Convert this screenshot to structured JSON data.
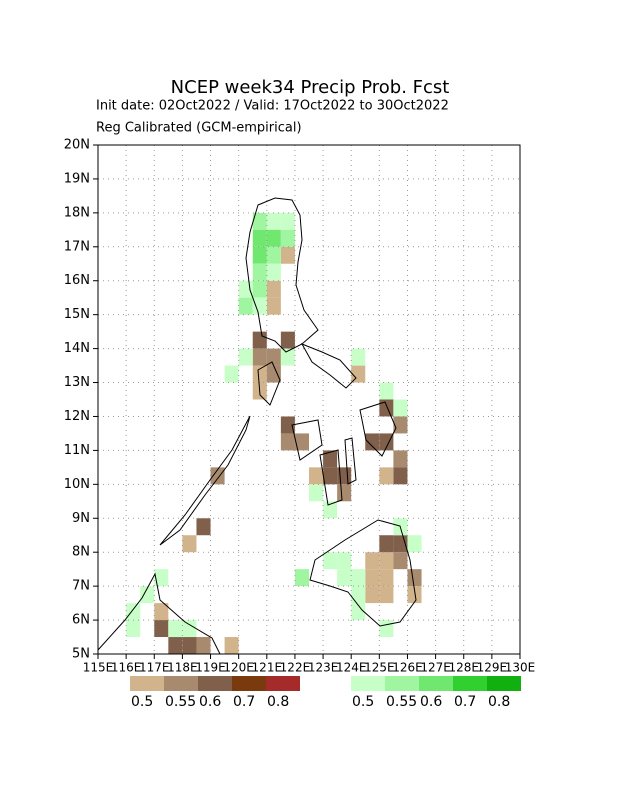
{
  "chart_data": {
    "type": "map",
    "title": "NCEP week34 Precip Prob. Fcst",
    "subtitle": "Init date: 02Oct2022 / Valid: 17Oct2022 to 30Oct2022",
    "note": "Reg Calibrated (GCM-empirical)",
    "xlim": [
      115,
      130
    ],
    "ylim": [
      5,
      20
    ],
    "xticks": [
      {
        "value": 115,
        "label": "115E"
      },
      {
        "value": 116,
        "label": "116E"
      },
      {
        "value": 117,
        "label": "117E"
      },
      {
        "value": 118,
        "label": "118E"
      },
      {
        "value": 119,
        "label": "119E"
      },
      {
        "value": 120,
        "label": "120E"
      },
      {
        "value": 121,
        "label": "121E"
      },
      {
        "value": 122,
        "label": "122E"
      },
      {
        "value": 123,
        "label": "123E"
      },
      {
        "value": 124,
        "label": "124E"
      },
      {
        "value": 125,
        "label": "125E"
      },
      {
        "value": 126,
        "label": "126E"
      },
      {
        "value": 127,
        "label": "127E"
      },
      {
        "value": 128,
        "label": "128E"
      },
      {
        "value": 129,
        "label": "129E"
      },
      {
        "value": 130,
        "label": "130E"
      }
    ],
    "yticks": [
      {
        "value": 5,
        "label": "5N"
      },
      {
        "value": 6,
        "label": "6N"
      },
      {
        "value": 7,
        "label": "7N"
      },
      {
        "value": 8,
        "label": "8N"
      },
      {
        "value": 9,
        "label": "9N"
      },
      {
        "value": 10,
        "label": "10N"
      },
      {
        "value": 11,
        "label": "11N"
      },
      {
        "value": 12,
        "label": "12N"
      },
      {
        "value": 13,
        "label": "13N"
      },
      {
        "value": 14,
        "label": "14N"
      },
      {
        "value": 15,
        "label": "15N"
      },
      {
        "value": 16,
        "label": "16N"
      },
      {
        "value": 17,
        "label": "17N"
      },
      {
        "value": 18,
        "label": "18N"
      },
      {
        "value": 19,
        "label": "19N"
      },
      {
        "value": 20,
        "label": "20N"
      }
    ],
    "grid": true,
    "legends": [
      {
        "colors": [
          "#d2b48c",
          "#a88a6e",
          "#80604a",
          "#7a3a0e",
          "#a52a2a"
        ],
        "labels": [
          0.5,
          0.55,
          0.6,
          0.7,
          0.8
        ]
      },
      {
        "colors": [
          "#c8ffc8",
          "#a0f5a0",
          "#70e870",
          "#30d030",
          "#10b010"
        ],
        "labels": [
          0.5,
          0.55,
          0.6,
          0.7,
          0.8
        ]
      }
    ],
    "layers": [
      {
        "cells": [
          {
            "lon": 121.5,
            "lat": 16.5,
            "p": 0.52
          },
          {
            "lon": 121,
            "lat": 15.5,
            "p": 0.52
          },
          {
            "lon": 121,
            "lat": 15,
            "p": 0.52
          },
          {
            "lon": 120.5,
            "lat": 14,
            "p": 0.62
          },
          {
            "lon": 121.5,
            "lat": 14,
            "p": 0.62
          },
          {
            "lon": 120.5,
            "lat": 13.5,
            "p": 0.57
          },
          {
            "lon": 121,
            "lat": 13.5,
            "p": 0.57
          },
          {
            "lon": 120.5,
            "lat": 13,
            "p": 0.52
          },
          {
            "lon": 121,
            "lat": 13,
            "p": 0.57
          },
          {
            "lon": 120.5,
            "lat": 12.5,
            "p": 0.52
          },
          {
            "lon": 124,
            "lat": 13,
            "p": 0.52
          },
          {
            "lon": 121.5,
            "lat": 11.5,
            "p": 0.62
          },
          {
            "lon": 121.5,
            "lat": 11,
            "p": 0.57
          },
          {
            "lon": 122,
            "lat": 11,
            "p": 0.57
          },
          {
            "lon": 123,
            "lat": 10.5,
            "p": 0.62
          },
          {
            "lon": 123,
            "lat": 10,
            "p": 0.62
          },
          {
            "lon": 123.5,
            "lat": 10,
            "p": 0.62
          },
          {
            "lon": 122.5,
            "lat": 10,
            "p": 0.52
          },
          {
            "lon": 123.5,
            "lat": 9.5,
            "p": 0.57
          },
          {
            "lon": 125,
            "lat": 12,
            "p": 0.62
          },
          {
            "lon": 125.5,
            "lat": 11.5,
            "p": 0.57
          },
          {
            "lon": 124.5,
            "lat": 11,
            "p": 0.62
          },
          {
            "lon": 125,
            "lat": 11,
            "p": 0.62
          },
          {
            "lon": 125.5,
            "lat": 10.5,
            "p": 0.57
          },
          {
            "lon": 125.5,
            "lat": 10,
            "p": 0.62
          },
          {
            "lon": 125,
            "lat": 10,
            "p": 0.52
          },
          {
            "lon": 118.5,
            "lat": 8.5,
            "p": 0.62
          },
          {
            "lon": 118,
            "lat": 8,
            "p": 0.52
          },
          {
            "lon": 119,
            "lat": 10,
            "p": 0.57
          },
          {
            "lon": 124.5,
            "lat": 7.5,
            "p": 0.52
          },
          {
            "lon": 125,
            "lat": 7.5,
            "p": 0.52
          },
          {
            "lon": 124.5,
            "lat": 7,
            "p": 0.52
          },
          {
            "lon": 125,
            "lat": 7,
            "p": 0.52
          },
          {
            "lon": 124.5,
            "lat": 6.5,
            "p": 0.52
          },
          {
            "lon": 125,
            "lat": 6.5,
            "p": 0.52
          },
          {
            "lon": 125,
            "lat": 8,
            "p": 0.62
          },
          {
            "lon": 125.5,
            "lat": 8,
            "p": 0.62
          },
          {
            "lon": 125.5,
            "lat": 7.5,
            "p": 0.57
          },
          {
            "lon": 126,
            "lat": 7,
            "p": 0.57
          },
          {
            "lon": 126,
            "lat": 6.5,
            "p": 0.52
          },
          {
            "lon": 117,
            "lat": 6,
            "p": 0.52
          },
          {
            "lon": 117,
            "lat": 5.5,
            "p": 0.62
          },
          {
            "lon": 117.5,
            "lat": 5,
            "p": 0.62
          },
          {
            "lon": 118,
            "lat": 5,
            "p": 0.62
          },
          {
            "lon": 118.5,
            "lat": 5,
            "p": 0.57
          },
          {
            "lon": 119.5,
            "lat": 5,
            "p": 0.52
          }
        ]
      },
      {
        "cells": [
          {
            "lon": 120.5,
            "lat": 17.5,
            "p": 0.57
          },
          {
            "lon": 121,
            "lat": 17.5,
            "p": 0.52
          },
          {
            "lon": 121.5,
            "lat": 17.5,
            "p": 0.52
          },
          {
            "lon": 120.5,
            "lat": 17,
            "p": 0.62
          },
          {
            "lon": 121,
            "lat": 17,
            "p": 0.62
          },
          {
            "lon": 121.5,
            "lat": 17,
            "p": 0.57
          },
          {
            "lon": 120.5,
            "lat": 16.5,
            "p": 0.62
          },
          {
            "lon": 121,
            "lat": 16.5,
            "p": 0.57
          },
          {
            "lon": 120.5,
            "lat": 16,
            "p": 0.57
          },
          {
            "lon": 121,
            "lat": 16,
            "p": 0.52
          },
          {
            "lon": 120,
            "lat": 15.5,
            "p": 0.52
          },
          {
            "lon": 120.5,
            "lat": 15.5,
            "p": 0.57
          },
          {
            "lon": 120,
            "lat": 15,
            "p": 0.57
          },
          {
            "lon": 120.5,
            "lat": 15,
            "p": 0.52
          },
          {
            "lon": 121.5,
            "lat": 13.5,
            "p": 0.52
          },
          {
            "lon": 120,
            "lat": 13.5,
            "p": 0.52
          },
          {
            "lon": 119.5,
            "lat": 13,
            "p": 0.52
          },
          {
            "lon": 124,
            "lat": 13.5,
            "p": 0.52
          },
          {
            "lon": 125,
            "lat": 12.5,
            "p": 0.52
          },
          {
            "lon": 125.5,
            "lat": 12,
            "p": 0.52
          },
          {
            "lon": 122.5,
            "lat": 9.5,
            "p": 0.52
          },
          {
            "lon": 123,
            "lat": 9,
            "p": 0.52
          },
          {
            "lon": 126,
            "lat": 8,
            "p": 0.52
          },
          {
            "lon": 125.5,
            "lat": 8.5,
            "p": 0.52
          },
          {
            "lon": 123.5,
            "lat": 7.5,
            "p": 0.52
          },
          {
            "lon": 123,
            "lat": 7.5,
            "p": 0.52
          },
          {
            "lon": 124,
            "lat": 7,
            "p": 0.52
          },
          {
            "lon": 123.5,
            "lat": 7,
            "p": 0.52
          },
          {
            "lon": 122,
            "lat": 7,
            "p": 0.57
          },
          {
            "lon": 124,
            "lat": 6,
            "p": 0.52
          },
          {
            "lon": 124,
            "lat": 6.5,
            "p": 0.52
          },
          {
            "lon": 125,
            "lat": 5.5,
            "p": 0.52
          },
          {
            "lon": 116,
            "lat": 6,
            "p": 0.52
          },
          {
            "lon": 116.5,
            "lat": 6.5,
            "p": 0.52
          },
          {
            "lon": 117,
            "lat": 7,
            "p": 0.52
          },
          {
            "lon": 116,
            "lat": 5.5,
            "p": 0.52
          },
          {
            "lon": 117.5,
            "lat": 5.5,
            "p": 0.52
          },
          {
            "lon": 118,
            "lat": 5.5,
            "p": 0.52
          }
        ]
      }
    ]
  }
}
